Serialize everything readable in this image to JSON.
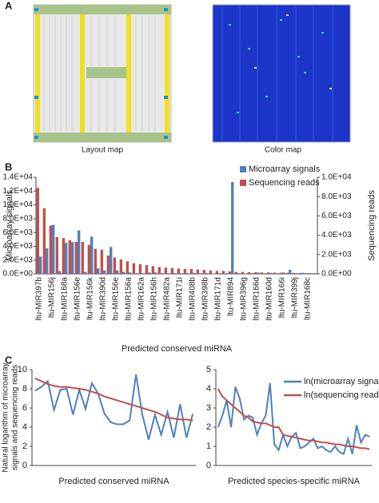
{
  "figure": {
    "panel_labels": [
      "A",
      "B",
      "C"
    ],
    "images": [
      "Layout map",
      "Color map"
    ]
  },
  "chart_data": [
    {
      "type": "bar",
      "xlabel": "Predicted conserved miRNA",
      "ylabel": "Microarray signals",
      "y2label": "Sequencing reads",
      "categories": [
        "ltu-MIR397b",
        null,
        "ltu-MIR156j",
        null,
        "ltu-MIR168a",
        null,
        "ltu-MIR156e",
        null,
        "ltu-MIR156k",
        null,
        "ltu-MIR390d",
        null,
        "ltu-MIR156e",
        null,
        "ltu-MIR156a",
        null,
        "ltu-MIR162a",
        null,
        "ltu-MIR156h",
        null,
        "ltu-MIR482a",
        null,
        "ltu-MIR171i",
        null,
        "ltu-MIR408b",
        null,
        "ltu-MIR398b",
        null,
        "ltu-MIR171d",
        null,
        "ltu-MIR894",
        null,
        "ltu-MIR396g",
        null,
        "ltu-MIR166d",
        null,
        "ltu-MIR160d",
        null,
        "ltu-MIR166i",
        null,
        "ltu-MIR399j",
        null,
        "ltu-MIR168c",
        null
      ],
      "series": [
        {
          "name": "Microarray signals",
          "color": "#4f81bd",
          "values": [
            2500,
            3700,
            7100,
            400,
            4500,
            4600,
            6300,
            300,
            5400,
            800,
            500,
            3900,
            500,
            300,
            200,
            100,
            100,
            200,
            200,
            100,
            100,
            100,
            100,
            100,
            150,
            100,
            100,
            50,
            100,
            100,
            13300,
            100,
            50,
            100,
            200,
            100,
            150,
            100,
            200,
            600,
            100,
            150,
            100,
            100
          ]
        },
        {
          "name": "Sequencing reads",
          "color": "#c0504d",
          "axis": "y2",
          "values": [
            8900,
            6800,
            5000,
            3800,
            3700,
            3500,
            3300,
            3300,
            3000,
            2600,
            2500,
            1900,
            1700,
            1500,
            1300,
            1100,
            1000,
            900,
            800,
            700,
            650,
            600,
            550,
            500,
            500,
            450,
            400,
            350,
            300,
            300,
            250,
            200,
            200,
            180,
            160,
            150,
            140,
            130,
            120,
            110,
            100,
            90,
            80,
            70
          ]
        }
      ],
      "ylim": [
        0,
        14000
      ],
      "yticks": [
        {
          "value": 0,
          "label": "0.0E+00"
        },
        {
          "value": 2000,
          "label": "2.0E+03"
        },
        {
          "value": 4000,
          "label": "4.0E+03"
        },
        {
          "value": 6000,
          "label": "6.0E+03"
        },
        {
          "value": 8000,
          "label": "8.0E+03"
        },
        {
          "value": 10000,
          "label": "1.0E+04"
        },
        {
          "value": 12000,
          "label": "1.2E+04"
        },
        {
          "value": 14000,
          "label": "1.4E+04"
        }
      ],
      "y2lim": [
        0,
        10000
      ],
      "y2ticks": [
        {
          "value": 0,
          "label": "0.0E+00"
        },
        {
          "value": 2000,
          "label": "2.0E+03"
        },
        {
          "value": 4000,
          "label": "4.0E+03"
        },
        {
          "value": 6000,
          "label": "6.0E+03"
        },
        {
          "value": 8000,
          "label": "8.0E+03"
        },
        {
          "value": 10000,
          "label": "1.0E+04"
        }
      ],
      "legend": "top-right"
    },
    {
      "type": "line",
      "xlabel": "Predicted conserved miRNA",
      "ylabel": [
        "Natural logarithm of microarray",
        "signals and sequencing reads"
      ],
      "categories": [
        null,
        null,
        null,
        null,
        null,
        null,
        null,
        null,
        null,
        null,
        null,
        null,
        null,
        null,
        null,
        null,
        null,
        null,
        null,
        null,
        null,
        null,
        null,
        null,
        null,
        null
      ],
      "series": [
        {
          "color": "#4f81bd",
          "values": [
            7.8,
            8.2,
            8.8,
            5.8,
            7.9,
            8.0,
            5.3,
            7.9,
            5.9,
            8.6,
            7.5,
            5.4,
            4.5,
            4.3,
            4.3,
            4.7,
            9.5,
            5.3,
            2.7,
            5.3,
            3.2,
            5.6,
            2.9,
            6.4,
            2.9,
            5.4
          ]
        },
        {
          "color": "#c0504d",
          "values": [
            9.1,
            8.8,
            8.5,
            8.3,
            8.2,
            8.2,
            8.1,
            8.0,
            7.9,
            7.7,
            7.5,
            7.2,
            7.0,
            6.8,
            6.6,
            6.4,
            6.2,
            6.0,
            5.8,
            5.6,
            5.3,
            5.0,
            4.9,
            4.8,
            4.8,
            4.7
          ]
        }
      ],
      "ylim": [
        0,
        10
      ],
      "yticks": [
        0,
        2,
        4,
        6,
        8,
        10
      ]
    },
    {
      "type": "line",
      "xlabel": "Predicted species-specific miRNA",
      "categories": [
        null,
        null,
        null,
        null,
        null,
        null,
        null,
        null,
        null,
        null,
        null,
        null,
        null,
        null,
        null,
        null,
        null,
        null,
        null,
        null,
        null,
        null,
        null,
        null,
        null,
        null,
        null,
        null,
        null,
        null,
        null,
        null,
        null,
        null,
        null,
        null
      ],
      "series": [
        {
          "name": "ln(microarray signals)",
          "color": "#4f81bd",
          "values": [
            2.0,
            2.6,
            3.4,
            2.0,
            4.1,
            3.5,
            2.4,
            2.6,
            2.5,
            1.6,
            2.2,
            2.6,
            4.3,
            1.1,
            0.8,
            1.6,
            1.0,
            1.5,
            1.7,
            0.9,
            1.0,
            1.2,
            1.4,
            0.9,
            1.0,
            0.8,
            0.7,
            1.0,
            0.7,
            0.6,
            1.4,
            0.6,
            2.1,
            1.2,
            1.6,
            1.5
          ]
        },
        {
          "name": "ln(sequencing reads)",
          "color": "#c0504d",
          "values": [
            4.0,
            3.6,
            3.4,
            3.2,
            3.0,
            2.8,
            2.6,
            2.5,
            2.3,
            2.25,
            2.2,
            2.2,
            2.1,
            2.0,
            2.0,
            1.6,
            1.55,
            1.5,
            1.45,
            1.4,
            1.35,
            1.3,
            1.3,
            1.25,
            1.2,
            1.2,
            1.15,
            1.1,
            1.1,
            1.05,
            1.0,
            1.0,
            0.95,
            0.9,
            0.9,
            0.85
          ]
        }
      ],
      "ylim": [
        0,
        5
      ],
      "yticks": [
        0,
        1,
        2,
        3,
        4,
        5
      ],
      "legend": "top-right"
    }
  ]
}
